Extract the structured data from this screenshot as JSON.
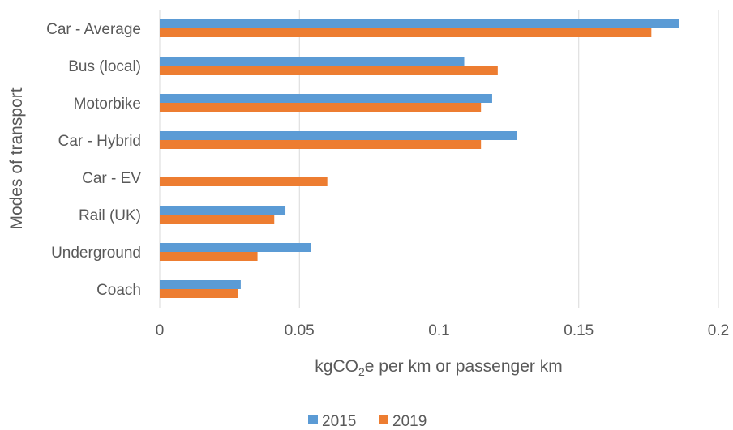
{
  "chart_data": {
    "type": "bar",
    "orientation": "horizontal",
    "categories": [
      "Car - Average",
      "Bus (local)",
      "Motorbike",
      "Car - Hybrid",
      "Car - EV",
      "Rail (UK)",
      "Underground",
      "Coach"
    ],
    "series": [
      {
        "name": "2015",
        "color": "#5b9bd5",
        "values": [
          0.186,
          0.109,
          0.119,
          0.128,
          null,
          0.045,
          0.054,
          0.029
        ]
      },
      {
        "name": "2019",
        "color": "#ed7d31",
        "values": [
          0.176,
          0.121,
          0.115,
          0.115,
          0.06,
          0.041,
          0.035,
          0.028
        ]
      }
    ],
    "xlabel_parts": {
      "pre": "kgCO",
      "sub": "2",
      "post": "e per km or passenger km"
    },
    "ylabel": "Modes of transport",
    "xlim": [
      0,
      0.2
    ],
    "xticks": [
      "0",
      "0.05",
      "0.1",
      "0.15",
      "0.2"
    ],
    "grid": "vertical",
    "legend_position": "bottom"
  }
}
